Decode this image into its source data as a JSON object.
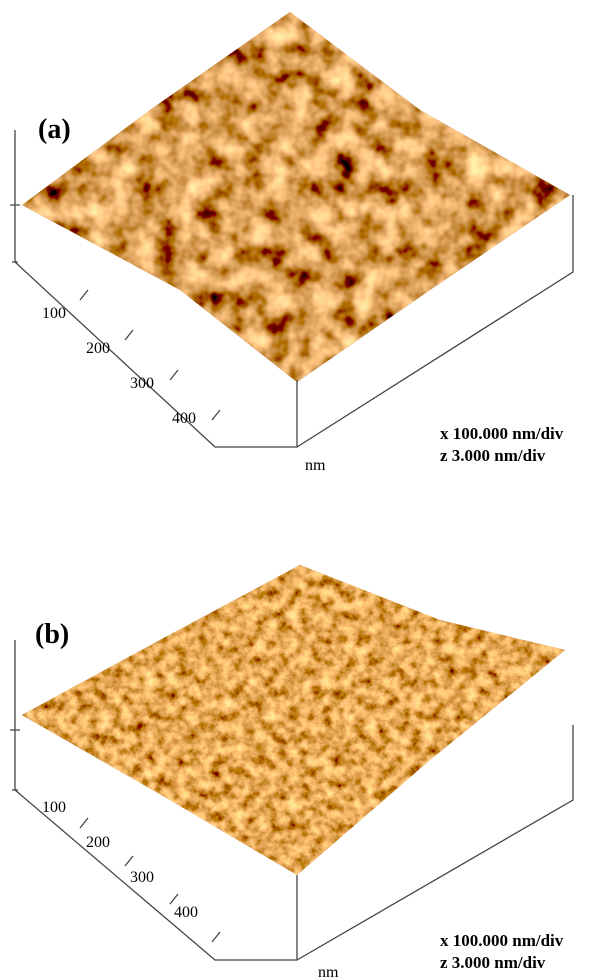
{
  "panels": [
    {
      "label": "(a)",
      "ticks": [
        "100",
        "200",
        "300",
        "400"
      ],
      "unit": "nm",
      "scale": [
        "x 100.000 nm/div",
        "z 3.000 nm/div"
      ]
    },
    {
      "label": "(b)",
      "ticks": [
        "100",
        "200",
        "300",
        "400"
      ],
      "unit": "nm",
      "scale": [
        "x 100.000 nm/div",
        "z 3.000 nm/div"
      ]
    }
  ]
}
